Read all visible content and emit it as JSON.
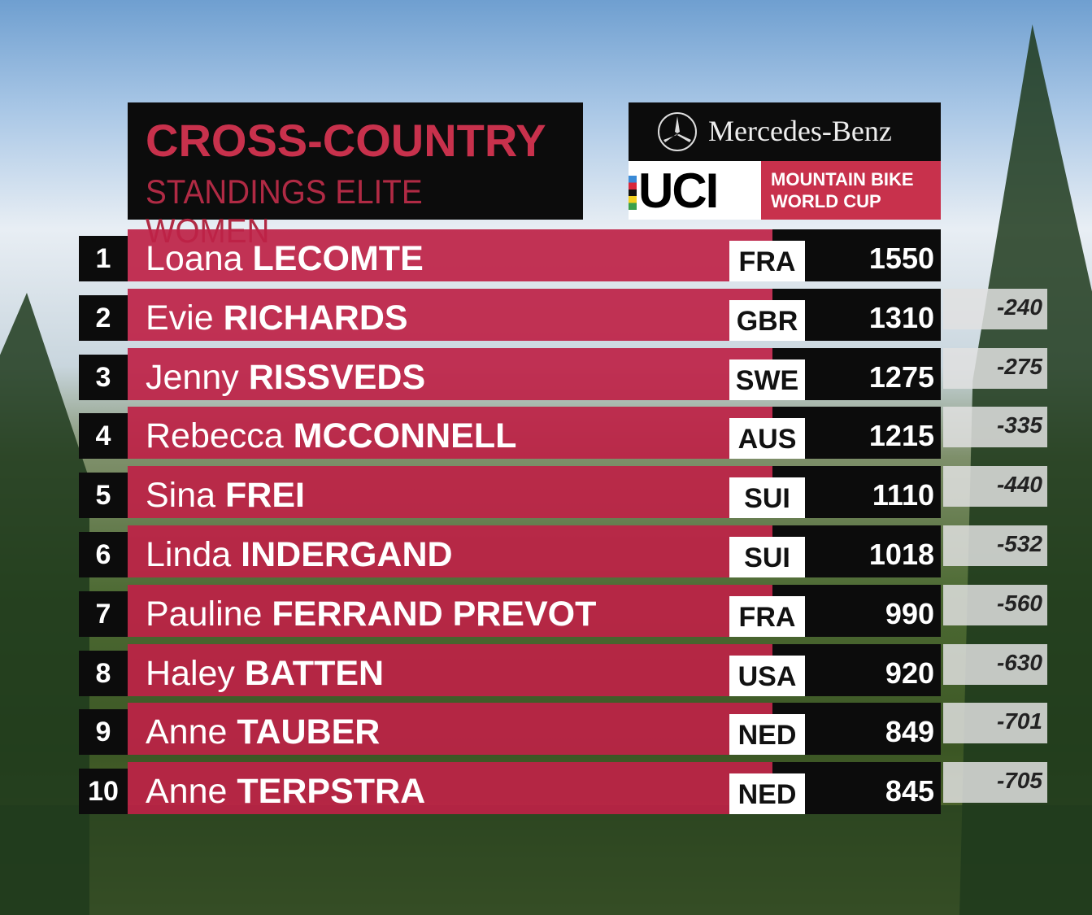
{
  "header": {
    "title": "CROSS-COUNTRY",
    "subtitle": "STANDINGS ELITE WOMEN"
  },
  "sponsor": {
    "name": "Mercedes-Benz",
    "logo_icon": "mercedes-star-icon",
    "org": "UCI",
    "event_line1": "MOUNTAIN BIKE",
    "event_line2": "WORLD CUP"
  },
  "colors": {
    "accent": "#c8314c",
    "panel": "#0c0c0c"
  },
  "standings": [
    {
      "rank": "1",
      "first": "Loana",
      "last": "LECOMTE",
      "nation": "FRA",
      "points": "1550",
      "gap": ""
    },
    {
      "rank": "2",
      "first": "Evie",
      "last": "RICHARDS",
      "nation": "GBR",
      "points": "1310",
      "gap": "-240"
    },
    {
      "rank": "3",
      "first": "Jenny",
      "last": "RISSVEDS",
      "nation": "SWE",
      "points": "1275",
      "gap": "-275"
    },
    {
      "rank": "4",
      "first": "Rebecca",
      "last": "MCCONNELL",
      "nation": "AUS",
      "points": "1215",
      "gap": "-335"
    },
    {
      "rank": "5",
      "first": "Sina",
      "last": "FREI",
      "nation": "SUI",
      "points": "1110",
      "gap": "-440"
    },
    {
      "rank": "6",
      "first": "Linda",
      "last": "INDERGAND",
      "nation": "SUI",
      "points": "1018",
      "gap": "-532"
    },
    {
      "rank": "7",
      "first": "Pauline",
      "last": "FERRAND PREVOT",
      "nation": "FRA",
      "points": "990",
      "gap": "-560"
    },
    {
      "rank": "8",
      "first": "Haley",
      "last": "BATTEN",
      "nation": "USA",
      "points": "920",
      "gap": "-630"
    },
    {
      "rank": "9",
      "first": "Anne",
      "last": "TAUBER",
      "nation": "NED",
      "points": "849",
      "gap": "-701"
    },
    {
      "rank": "10",
      "first": "Anne",
      "last": "TERPSTRA",
      "nation": "NED",
      "points": "845",
      "gap": "-705"
    }
  ]
}
